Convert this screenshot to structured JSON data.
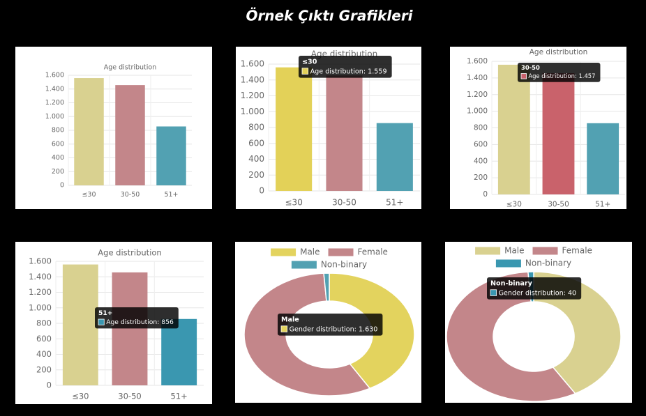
{
  "title": "Örnek Çıktı Grafikleri",
  "chart_data": [
    {
      "type": "bar",
      "title": "Age distribution",
      "categories": [
        "≤30",
        "30-50",
        "51+"
      ],
      "values": [
        1559,
        1457,
        856
      ],
      "colors": [
        "#d9d190",
        "#c3868a",
        "#52a1b2"
      ],
      "ylim": [
        0,
        1600
      ],
      "yticks": [
        0,
        200,
        400,
        600,
        800,
        {
          "value": 1000,
          "label": "1.000"
        },
        {
          "value": 1200,
          "label": "1.200"
        },
        {
          "value": 1400,
          "label": "1.400"
        },
        {
          "value": 1600,
          "label": "1.600"
        }
      ],
      "grid": true
    },
    {
      "type": "bar",
      "title": "Age distribution",
      "categories": [
        "≤30",
        "30-50",
        "51+"
      ],
      "values": [
        1559,
        1457,
        856
      ],
      "colors": [
        "#e3d158",
        "#c3868a",
        "#52a1b2"
      ],
      "ylim": [
        0,
        1600
      ],
      "yticks": [
        0,
        200,
        400,
        600,
        800,
        {
          "value": 1000,
          "label": "1.000"
        },
        {
          "value": 1200,
          "label": "1.200"
        },
        {
          "value": 1400,
          "label": "1.400"
        },
        {
          "value": 1600,
          "label": "1.600"
        }
      ],
      "grid": true,
      "tooltip": {
        "title": "≤30",
        "label": "Age distribution: 1.559"
      }
    },
    {
      "type": "bar",
      "title": "Age distribution",
      "categories": [
        "≤30",
        "30-50",
        "51+"
      ],
      "values": [
        1559,
        1457,
        856
      ],
      "colors": [
        "#d9d190",
        "#c9626b",
        "#52a1b2"
      ],
      "ylim": [
        0,
        1600
      ],
      "yticks": [
        0,
        200,
        400,
        600,
        800,
        {
          "value": 1000,
          "label": "1.000"
        },
        {
          "value": 1200,
          "label": "1.200"
        },
        {
          "value": 1400,
          "label": "1.400"
        },
        {
          "value": 1600,
          "label": "1.600"
        }
      ],
      "grid": true,
      "tooltip": {
        "title": "30-50",
        "label": "Age distribution: 1.457"
      }
    },
    {
      "type": "bar",
      "title": "Age distribution",
      "categories": [
        "≤30",
        "30-50",
        "51+"
      ],
      "values": [
        1559,
        1457,
        856
      ],
      "colors": [
        "#d9d190",
        "#c3868a",
        "#3a97b0"
      ],
      "ylim": [
        0,
        1600
      ],
      "yticks": [
        0,
        200,
        400,
        600,
        800,
        {
          "value": 1000,
          "label": "1.000"
        },
        {
          "value": 1200,
          "label": "1.200"
        },
        {
          "value": 1400,
          "label": "1.400"
        },
        {
          "value": 1600,
          "label": "1.600"
        }
      ],
      "grid": true,
      "tooltip": {
        "title": "51+",
        "label": "Age distribution: 856"
      }
    },
    {
      "type": "doughnut",
      "categories": [
        "Male",
        "Female",
        "Non-binary"
      ],
      "values": [
        1630,
        2202,
        40
      ],
      "colors": [
        "#e3d35e",
        "#c3868a",
        "#52a1b2"
      ],
      "legend": "top",
      "tooltip": {
        "title": "Male",
        "label": "Gender distribution: 1.630"
      }
    },
    {
      "type": "doughnut",
      "categories": [
        "Male",
        "Female",
        "Non-binary"
      ],
      "values": [
        1630,
        2202,
        40
      ],
      "colors": [
        "#d9d190",
        "#c3868a",
        "#3a97b0"
      ],
      "legend": "top",
      "tooltip": {
        "title": "Non-binary",
        "label": "Gender distribution: 40"
      }
    }
  ]
}
